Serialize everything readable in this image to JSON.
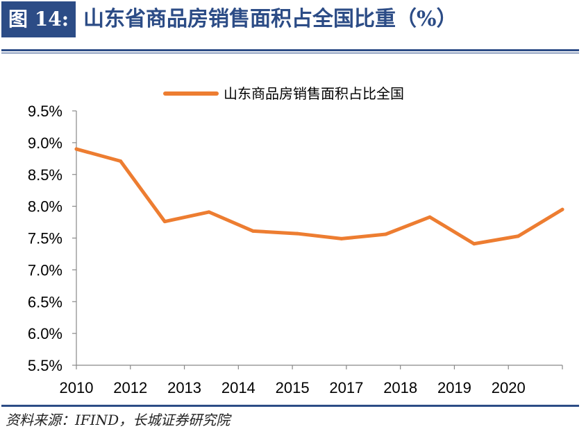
{
  "header": {
    "figure_label": "图 14:",
    "title": "山东省商品房销售面积占全国比重（%）"
  },
  "footer": {
    "source": "资料来源：IFIND，长城证券研究院"
  },
  "colors": {
    "accent": "#2c4c86",
    "series": "#ed7d31"
  },
  "chart_data": {
    "type": "line",
    "title": "",
    "xlabel": "",
    "ylabel": "",
    "ylim": [
      0.055,
      0.095
    ],
    "y_ticks": [
      0.055,
      0.06,
      0.065,
      0.07,
      0.075,
      0.08,
      0.085,
      0.09,
      0.095
    ],
    "y_tick_labels": [
      "5.5%",
      "6.0%",
      "6.5%",
      "7.0%",
      "7.5%",
      "8.0%",
      "8.5%",
      "9.0%",
      "9.5%"
    ],
    "x_tick_labels": [
      "2010",
      "2012",
      "2013",
      "2014",
      "2015",
      "2017",
      "2018",
      "2019",
      "2020"
    ],
    "legend": "top-center",
    "grid": false,
    "series": [
      {
        "name": "山东商品房销售面积占比全国",
        "values": [
          0.089,
          0.0871,
          0.0776,
          0.0791,
          0.0761,
          0.0757,
          0.0749,
          0.0756,
          0.0783,
          0.0741,
          0.0753,
          0.0795
        ]
      }
    ]
  }
}
